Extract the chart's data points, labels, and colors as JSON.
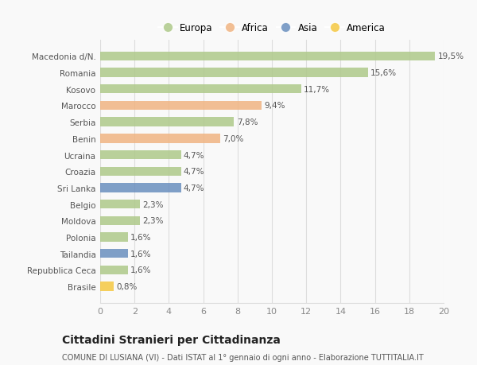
{
  "categories": [
    "Macedonia d/N.",
    "Romania",
    "Kosovo",
    "Marocco",
    "Serbia",
    "Benin",
    "Ucraina",
    "Croazia",
    "Sri Lanka",
    "Belgio",
    "Moldova",
    "Polonia",
    "Tailandia",
    "Repubblica Ceca",
    "Brasile"
  ],
  "values": [
    19.5,
    15.6,
    11.7,
    9.4,
    7.8,
    7.0,
    4.7,
    4.7,
    4.7,
    2.3,
    2.3,
    1.6,
    1.6,
    1.6,
    0.8
  ],
  "labels": [
    "19,5%",
    "15,6%",
    "11,7%",
    "9,4%",
    "7,8%",
    "7,0%",
    "4,7%",
    "4,7%",
    "4,7%",
    "2,3%",
    "2,3%",
    "1,6%",
    "1,6%",
    "1,6%",
    "0,8%"
  ],
  "continents": [
    "Europa",
    "Europa",
    "Europa",
    "Africa",
    "Europa",
    "Africa",
    "Europa",
    "Europa",
    "Asia",
    "Europa",
    "Europa",
    "Europa",
    "Asia",
    "Europa",
    "America"
  ],
  "colors": {
    "Europa": "#aec98a",
    "Africa": "#f0b482",
    "Asia": "#6a8fbf",
    "America": "#f5c842"
  },
  "xlim": [
    0,
    20
  ],
  "xticks": [
    0,
    2,
    4,
    6,
    8,
    10,
    12,
    14,
    16,
    18,
    20
  ],
  "title": "Cittadini Stranieri per Cittadinanza",
  "subtitle": "COMUNE DI LUSIANA (VI) - Dati ISTAT al 1° gennaio di ogni anno - Elaborazione TUTTITALIA.IT",
  "background_color": "#f9f9f9",
  "grid_color": "#dddddd",
  "bar_height": 0.55,
  "label_fontsize": 7.5,
  "ytick_fontsize": 7.5,
  "xtick_fontsize": 8,
  "title_fontsize": 10,
  "subtitle_fontsize": 7,
  "legend_fontsize": 8.5,
  "legend_entries": [
    "Europa",
    "Africa",
    "Asia",
    "America"
  ]
}
